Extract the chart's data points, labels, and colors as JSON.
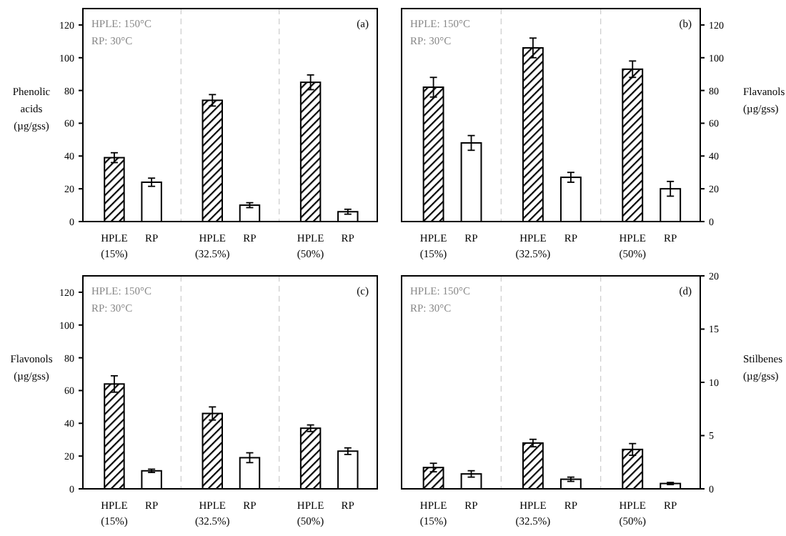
{
  "chart_data": [
    {
      "type": "bar",
      "ylabel": "Phenolic acids (µg/gss)",
      "categories": [
        "HPLE (15%)",
        "RP",
        "HPLE (32.5%)",
        "RP",
        "HPLE (50%)",
        "RP"
      ],
      "series": [
        {
          "color": "#000000",
          "values": [
            39,
            24,
            74,
            10,
            85,
            6
          ],
          "errors": [
            3,
            2.5,
            3.5,
            1.5,
            4.5,
            1.5
          ]
        }
      ],
      "ylim": [
        0,
        130
      ],
      "yticks": [
        0,
        20,
        40,
        60,
        80,
        100,
        120
      ],
      "annotations": [
        "HPLE: 150°C",
        "RP: 30°C",
        "(a)"
      ],
      "grid": false
    },
    {
      "type": "bar",
      "y2label": "Flavanols (µg/gss)",
      "categories": [
        "HPLE (15%)",
        "RP",
        "HPLE (32.5%)",
        "RP",
        "HPLE (50%)",
        "RP"
      ],
      "series": [
        {
          "axis": "y2",
          "color": "#000000",
          "values": [
            82,
            48,
            106,
            27,
            93,
            20
          ],
          "errors": [
            6,
            4.5,
            6,
            3,
            5,
            4.5
          ]
        }
      ],
      "y2lim": [
        0,
        130
      ],
      "y2ticks": [
        0,
        20,
        40,
        60,
        80,
        100,
        120
      ],
      "annotations": [
        "HPLE: 150°C",
        "RP: 30°C",
        "(b)"
      ],
      "grid": false
    },
    {
      "type": "bar",
      "ylabel": "Flavonols (µg/gss)",
      "categories": [
        "HPLE (15%)",
        "RP",
        "HPLE (32.5%)",
        "RP",
        "HPLE (50%)",
        "RP"
      ],
      "series": [
        {
          "color": "#000000",
          "values": [
            64,
            11,
            46,
            19,
            37,
            23
          ],
          "errors": [
            5,
            1,
            4,
            3,
            2,
            2
          ]
        }
      ],
      "ylim": [
        0,
        130
      ],
      "yticks": [
        0,
        20,
        40,
        60,
        80,
        100,
        120
      ],
      "annotations": [
        "HPLE: 150°C",
        "RP: 30°C",
        "(c)"
      ],
      "grid": false
    },
    {
      "type": "bar",
      "y2label": "Stilbenes (µg/gss)",
      "categories": [
        "HPLE (15%)",
        "RP",
        "HPLE (32.5%)",
        "RP",
        "HPLE (50%)",
        "RP"
      ],
      "series": [
        {
          "axis": "y2",
          "color": "#000000",
          "values": [
            2,
            1.4,
            4.3,
            0.9,
            3.7,
            0.5
          ],
          "errors": [
            0.4,
            0.3,
            0.35,
            0.2,
            0.55,
            0.1
          ]
        }
      ],
      "y2lim": [
        0,
        20
      ],
      "y2ticks": [
        0,
        5,
        10,
        15,
        20
      ],
      "annotations": [
        "HPLE: 150°C",
        "RP: 30°C",
        "(d)"
      ],
      "grid": false
    }
  ]
}
